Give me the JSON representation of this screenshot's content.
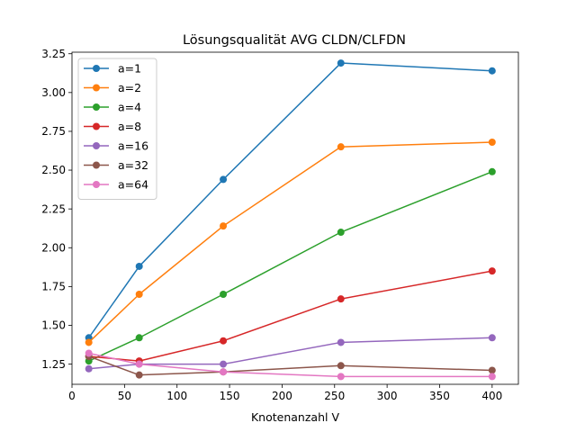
{
  "chart_data": {
    "type": "line",
    "title": "Lösungsqualität AVG CLDN/CLFDN",
    "xlabel": "Knotenanzahl V",
    "ylabel": "",
    "x": [
      16,
      64,
      144,
      256,
      400
    ],
    "xlim": [
      0,
      425
    ],
    "ylim": [
      1.12,
      3.26
    ],
    "xticks": [
      0,
      50,
      100,
      150,
      200,
      250,
      300,
      350,
      400
    ],
    "xtick_labels": [
      "0",
      "50",
      "100",
      "150",
      "200",
      "250",
      "300",
      "350",
      "400"
    ],
    "yticks": [
      1.25,
      1.5,
      1.75,
      2.0,
      2.25,
      2.5,
      2.75,
      3.0,
      3.25
    ],
    "ytick_labels": [
      "1.25",
      "1.50",
      "1.75",
      "2.00",
      "2.25",
      "2.50",
      "2.75",
      "3.00",
      "3.25"
    ],
    "grid": false,
    "legend_position": "top-left",
    "series": [
      {
        "name": "a=1",
        "color": "#1f77b4",
        "values": [
          1.42,
          1.88,
          2.44,
          3.19,
          3.14
        ]
      },
      {
        "name": "a=2",
        "color": "#ff7f0e",
        "values": [
          1.39,
          1.7,
          2.14,
          2.65,
          2.68
        ]
      },
      {
        "name": "a=4",
        "color": "#2ca02c",
        "values": [
          1.27,
          1.42,
          1.7,
          2.1,
          2.49
        ]
      },
      {
        "name": "a=8",
        "color": "#d62728",
        "values": [
          1.3,
          1.27,
          1.4,
          1.67,
          1.85
        ]
      },
      {
        "name": "a=16",
        "color": "#9467bd",
        "values": [
          1.22,
          1.25,
          1.25,
          1.39,
          1.42
        ]
      },
      {
        "name": "a=32",
        "color": "#8c564b",
        "values": [
          1.3,
          1.18,
          1.2,
          1.24,
          1.21
        ]
      },
      {
        "name": "a=64",
        "color": "#e377c2",
        "values": [
          1.32,
          1.25,
          1.2,
          1.17,
          1.17
        ]
      }
    ]
  }
}
